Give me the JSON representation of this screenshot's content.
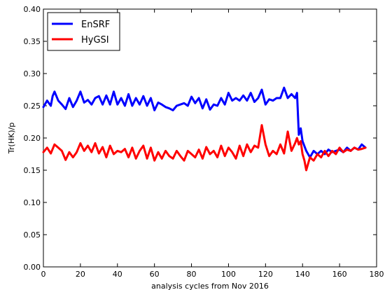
{
  "chart_data": {
    "type": "line",
    "title": "",
    "xlabel": "analysis cycles from Nov 2016",
    "ylabel": "Tr(HK)/p",
    "xlim": [
      0,
      180
    ],
    "ylim": [
      0.0,
      0.4
    ],
    "xticks": [
      0,
      20,
      40,
      60,
      80,
      100,
      120,
      140,
      160,
      180
    ],
    "yticks": [
      0.0,
      0.05,
      0.1,
      0.15,
      0.2,
      0.25,
      0.3,
      0.35,
      0.4
    ],
    "xtick_labels": [
      "0",
      "20",
      "40",
      "60",
      "80",
      "100",
      "120",
      "140",
      "160",
      "180"
    ],
    "ytick_labels": [
      "0.00",
      "0.05",
      "0.10",
      "0.15",
      "0.20",
      "0.25",
      "0.30",
      "0.35",
      "0.40"
    ],
    "grid": false,
    "legend_position": "top-left",
    "series": [
      {
        "name": "EnSRF",
        "color": "#0000ff",
        "x": [
          0,
          2,
          4,
          5,
          6,
          8,
          10,
          12,
          14,
          16,
          18,
          20,
          22,
          24,
          26,
          28,
          30,
          32,
          34,
          36,
          38,
          40,
          42,
          44,
          46,
          48,
          50,
          52,
          54,
          56,
          58,
          60,
          62,
          64,
          66,
          68,
          70,
          72,
          74,
          76,
          78,
          80,
          82,
          84,
          86,
          88,
          90,
          92,
          94,
          96,
          98,
          100,
          102,
          104,
          106,
          108,
          110,
          112,
          114,
          116,
          118,
          120,
          122,
          124,
          126,
          128,
          130,
          132,
          134,
          136,
          137,
          138,
          139,
          140,
          142,
          144,
          146,
          148,
          150,
          152,
          154,
          156,
          158,
          160,
          162,
          164,
          166,
          168,
          170,
          172,
          174
        ],
        "y": [
          0.248,
          0.258,
          0.25,
          0.265,
          0.272,
          0.258,
          0.252,
          0.245,
          0.262,
          0.248,
          0.258,
          0.272,
          0.255,
          0.259,
          0.252,
          0.262,
          0.265,
          0.252,
          0.266,
          0.252,
          0.272,
          0.252,
          0.262,
          0.25,
          0.268,
          0.25,
          0.262,
          0.252,
          0.265,
          0.25,
          0.262,
          0.243,
          0.255,
          0.252,
          0.248,
          0.246,
          0.243,
          0.25,
          0.252,
          0.254,
          0.25,
          0.264,
          0.254,
          0.262,
          0.246,
          0.26,
          0.244,
          0.252,
          0.25,
          0.262,
          0.252,
          0.27,
          0.258,
          0.262,
          0.258,
          0.266,
          0.258,
          0.27,
          0.256,
          0.262,
          0.275,
          0.252,
          0.26,
          0.258,
          0.262,
          0.262,
          0.278,
          0.262,
          0.268,
          0.262,
          0.27,
          0.205,
          0.215,
          0.195,
          0.18,
          0.17,
          0.18,
          0.175,
          0.18,
          0.175,
          0.182,
          0.178,
          0.18,
          0.182,
          0.178,
          0.185,
          0.18,
          0.185,
          0.182,
          0.19,
          0.185
        ]
      },
      {
        "name": "HyGSI",
        "color": "#ff0000",
        "x": [
          0,
          2,
          4,
          6,
          8,
          10,
          12,
          14,
          16,
          18,
          20,
          22,
          24,
          26,
          28,
          30,
          32,
          34,
          36,
          38,
          40,
          42,
          44,
          46,
          48,
          50,
          52,
          54,
          56,
          58,
          60,
          62,
          64,
          66,
          68,
          70,
          72,
          74,
          76,
          78,
          80,
          82,
          84,
          86,
          88,
          90,
          92,
          94,
          96,
          98,
          100,
          102,
          104,
          106,
          108,
          110,
          112,
          114,
          116,
          118,
          120,
          122,
          124,
          126,
          128,
          130,
          132,
          134,
          136,
          137,
          138,
          139,
          140,
          141,
          142,
          144,
          146,
          148,
          150,
          152,
          154,
          156,
          158,
          160,
          162,
          164,
          166,
          168,
          170,
          172,
          174
        ],
        "y": [
          0.178,
          0.185,
          0.176,
          0.19,
          0.185,
          0.18,
          0.166,
          0.178,
          0.17,
          0.178,
          0.192,
          0.18,
          0.188,
          0.178,
          0.192,
          0.176,
          0.186,
          0.17,
          0.188,
          0.175,
          0.18,
          0.178,
          0.183,
          0.17,
          0.185,
          0.168,
          0.18,
          0.188,
          0.168,
          0.185,
          0.165,
          0.178,
          0.168,
          0.18,
          0.172,
          0.168,
          0.18,
          0.172,
          0.165,
          0.18,
          0.175,
          0.17,
          0.182,
          0.168,
          0.186,
          0.175,
          0.18,
          0.17,
          0.188,
          0.172,
          0.185,
          0.178,
          0.168,
          0.188,
          0.172,
          0.19,
          0.178,
          0.188,
          0.185,
          0.22,
          0.19,
          0.172,
          0.18,
          0.175,
          0.19,
          0.176,
          0.21,
          0.18,
          0.192,
          0.2,
          0.19,
          0.195,
          0.175,
          0.165,
          0.15,
          0.17,
          0.165,
          0.175,
          0.17,
          0.18,
          0.172,
          0.18,
          0.175,
          0.185,
          0.178,
          0.182,
          0.18,
          0.185,
          0.182,
          0.183,
          0.185
        ]
      }
    ]
  }
}
